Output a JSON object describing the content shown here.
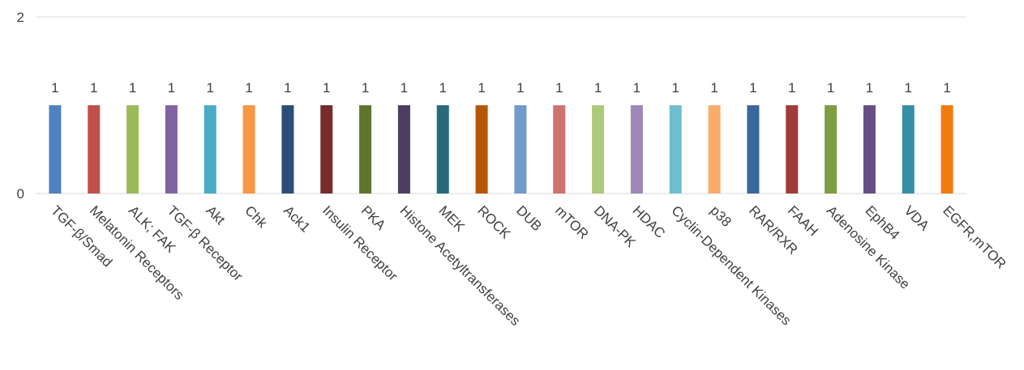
{
  "chart_data": {
    "type": "bar",
    "categories": [
      "TGF-β/Smad",
      "Melatonin Receptors",
      "ALK; FAK",
      "TGF-β Receptor",
      "Akt",
      "Chk",
      "Ack1",
      "Insulin Receptor",
      "PKA",
      "Histone Acetyltransferases",
      "MEK",
      "ROCK",
      "DUB",
      "mTOR",
      "DNA-PK",
      "HDAC",
      "Cyclin-Dependent Kinases",
      "p38",
      "RAR/RXR",
      "FAAH",
      "Adenosine Kinase",
      "EphB4",
      "VDA",
      "EGFR,mTOR"
    ],
    "values": [
      1,
      1,
      1,
      1,
      1,
      1,
      1,
      1,
      1,
      1,
      1,
      1,
      1,
      1,
      1,
      1,
      1,
      1,
      1,
      1,
      1,
      1,
      1,
      1
    ],
    "bar_colors": [
      "#4F81BD",
      "#C0504D",
      "#9BBB59",
      "#8064A2",
      "#4BACC6",
      "#F79646",
      "#2C4D75",
      "#772C2A",
      "#5F7530",
      "#4D3B62",
      "#276A7C",
      "#B65708",
      "#729ACA",
      "#CD7371",
      "#AFC97A",
      "#9D88B8",
      "#6FBDD1",
      "#F9AB6B",
      "#3A679C",
      "#9F3B38",
      "#7E9C40",
      "#664F83",
      "#358EA6",
      "#F27B0E"
    ],
    "y_ticks": [
      "0",
      "2"
    ],
    "ylim": [
      0,
      2
    ],
    "grid": true,
    "show_data_labels": true,
    "title": "",
    "xlabel": "",
    "ylabel": ""
  }
}
